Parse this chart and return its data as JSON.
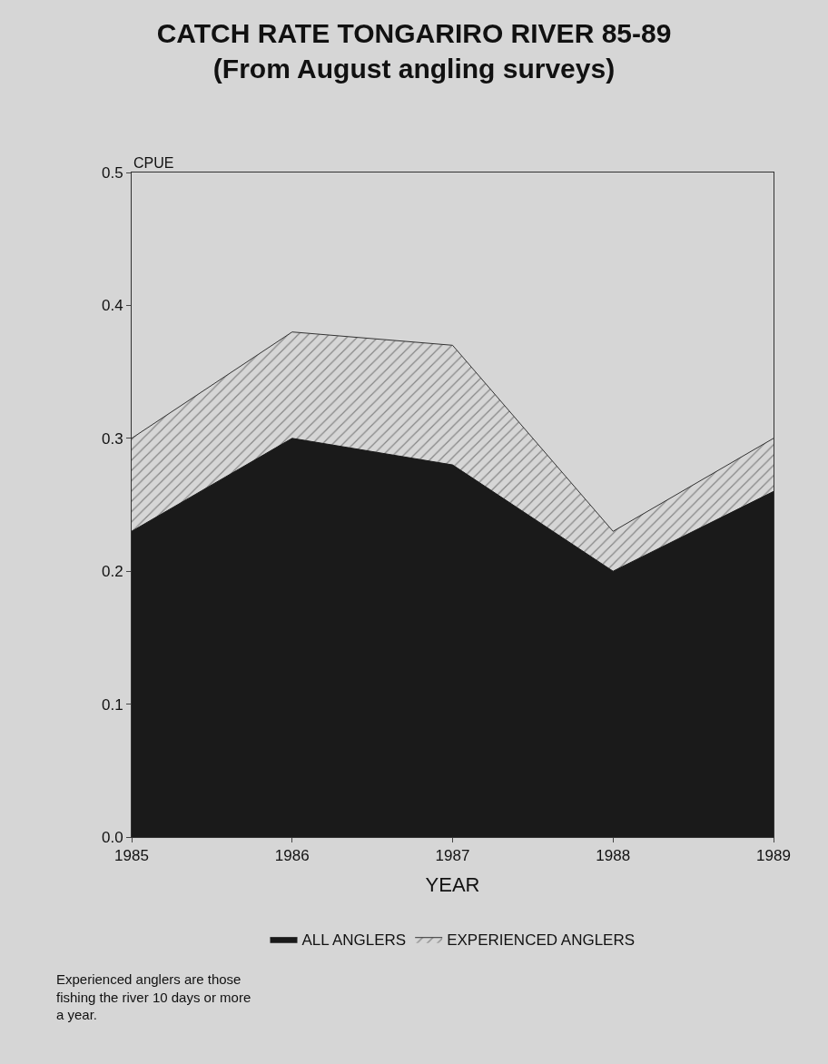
{
  "chart_data": {
    "type": "area",
    "title": "CATCH RATE TONGARIRO RIVER 85-89",
    "subtitle": "(From August angling surveys)",
    "xlabel": "YEAR",
    "ylabel": "CPUE",
    "x": [
      1985,
      1986,
      1987,
      1988,
      1989
    ],
    "series": [
      {
        "name": "EXPERIENCED ANGLERS",
        "color": "#333333",
        "values": [
          0.3,
          0.38,
          0.37,
          0.23,
          0.3
        ]
      },
      {
        "name": "ALL ANGLERS",
        "color": "#1a1a1a",
        "values": [
          0.23,
          0.3,
          0.28,
          0.2,
          0.26
        ]
      }
    ],
    "xlim": [
      1985,
      1989
    ],
    "xticks": [
      1985,
      1986,
      1987,
      1988,
      1989
    ],
    "ylim": [
      0,
      0.5
    ],
    "yticks": [
      {
        "value": 0,
        "label": "0.0"
      },
      {
        "value": 0.1,
        "label": "0.1"
      },
      {
        "value": 0.2,
        "label": "0.2"
      },
      {
        "value": 0.3,
        "label": "0.3"
      },
      {
        "value": 0.4,
        "label": "0.4"
      },
      {
        "value": 0.5,
        "label": "0.5"
      }
    ],
    "grid": false,
    "legend": "bottom",
    "annotations": [
      "Experienced anglers are those fishing the river 10 days or more a year."
    ]
  }
}
